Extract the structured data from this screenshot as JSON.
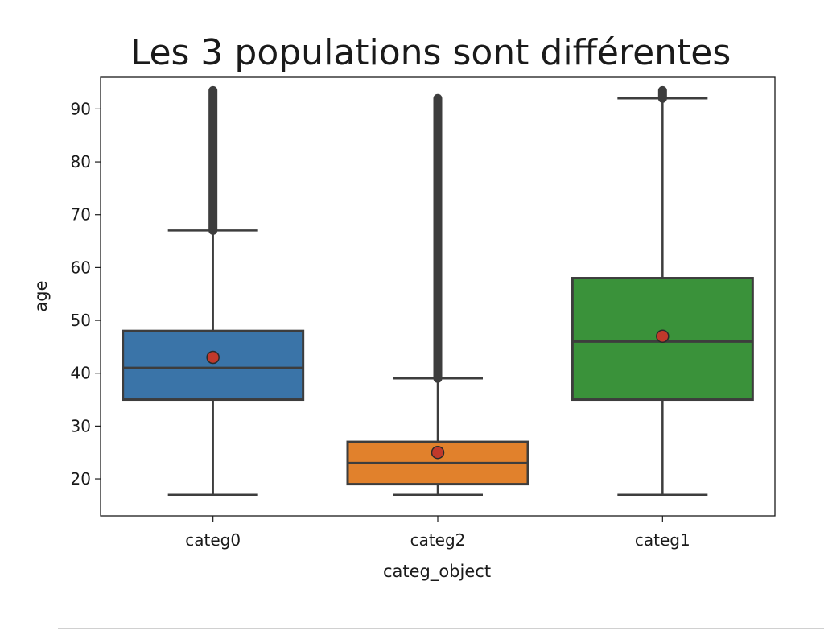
{
  "chart_data": {
    "type": "box",
    "title": "Les 3 populations sont différentes",
    "xlabel": "categ_object",
    "ylabel": "age",
    "ylim": [
      13,
      96
    ],
    "yticks": [
      20,
      30,
      40,
      50,
      60,
      70,
      80,
      90
    ],
    "grid": false,
    "categories": [
      "categ0",
      "categ2",
      "categ1"
    ],
    "boxes": [
      {
        "category": "categ0",
        "color": "#3a74a8",
        "whislo": 17,
        "q1": 35,
        "median": 41,
        "q3": 48,
        "whishi": 67,
        "mean": 43,
        "outliers_from": 67,
        "outliers_to": 93.5
      },
      {
        "category": "categ2",
        "color": "#e1812c",
        "whislo": 17,
        "q1": 19,
        "median": 23,
        "q3": 27,
        "whishi": 39,
        "mean": 25,
        "outliers_from": 39,
        "outliers_to": 92
      },
      {
        "category": "categ1",
        "color": "#3a923a",
        "whislo": 17,
        "q1": 35,
        "median": 46,
        "q3": 58,
        "whishi": 92,
        "mean": 47,
        "outliers_from": 92,
        "outliers_to": 93.5
      }
    ],
    "mean_marker_color": "#c0392b"
  }
}
